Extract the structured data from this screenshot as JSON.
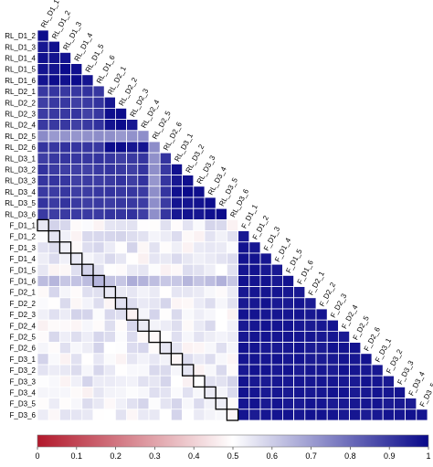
{
  "chart_data": {
    "type": "heatmap",
    "subtype": "lower-triangle correlation matrix",
    "labels": [
      "RL_D1_1",
      "RL_D1_2",
      "RL_D1_3",
      "RL_D1_4",
      "RL_D1_5",
      "RL_D1_6",
      "RL_D2_1",
      "RL_D2_2",
      "RL_D2_3",
      "RL_D2_4",
      "RL_D2_5",
      "RL_D2_6",
      "RL_D3_1",
      "RL_D3_2",
      "RL_D3_3",
      "RL_D3_4",
      "RL_D3_5",
      "RL_D3_6",
      "F_D1_1",
      "F_D1_2",
      "F_D1_3",
      "F_D1_4",
      "F_D1_5",
      "F_D1_6",
      "F_D2_1",
      "F_D2_2",
      "F_D2_3",
      "F_D2_4",
      "F_D2_5",
      "F_D2_6",
      "F_D3_1",
      "F_D3_2",
      "F_D3_3",
      "F_D3_4",
      "F_D3_5",
      "F_D3_6"
    ],
    "groups": [
      {
        "prefix": "RL",
        "count": 18
      },
      {
        "prefix": "F",
        "count": 18
      }
    ],
    "approx_values": {
      "RL_vs_RL_within_block": 0.98,
      "RL_vs_RL_across_blocks": 0.9,
      "RL_D2_5_vs_RL": 0.72,
      "F_vs_F": 0.97,
      "F_vs_RL": 0.53,
      "F_D1_6_vs_RL": 0.64
    },
    "highlighted_pairs": [
      [
        "F_D1_1",
        "RL_D1_1"
      ],
      [
        "F_D1_2",
        "RL_D1_2"
      ],
      [
        "F_D1_3",
        "RL_D1_3"
      ],
      [
        "F_D1_4",
        "RL_D1_4"
      ],
      [
        "F_D1_5",
        "RL_D1_5"
      ],
      [
        "F_D1_6",
        "RL_D1_6"
      ],
      [
        "F_D2_1",
        "RL_D2_1"
      ],
      [
        "F_D2_2",
        "RL_D2_2"
      ],
      [
        "F_D2_3",
        "RL_D2_3"
      ],
      [
        "F_D2_4",
        "RL_D2_4"
      ],
      [
        "F_D2_5",
        "RL_D2_5"
      ],
      [
        "F_D2_6",
        "RL_D2_6"
      ],
      [
        "F_D3_1",
        "RL_D3_1"
      ],
      [
        "F_D3_2",
        "RL_D3_2"
      ],
      [
        "F_D3_3",
        "RL_D3_3"
      ],
      [
        "F_D3_4",
        "RL_D3_4"
      ],
      [
        "F_D3_5",
        "RL_D3_5"
      ],
      [
        "F_D3_6",
        "RL_D3_6"
      ]
    ],
    "colorbar": {
      "min": 0,
      "max": 1,
      "ticks": [
        "0",
        "0.1",
        "0.2",
        "0.3",
        "0.4",
        "0.5",
        "0.6",
        "0.7",
        "0.8",
        "0.9",
        "1"
      ],
      "colors": {
        "low": "#b2182b",
        "mid": "#ffffff",
        "high": "#08088a"
      }
    },
    "grid": true,
    "legend_position": "bottom"
  }
}
